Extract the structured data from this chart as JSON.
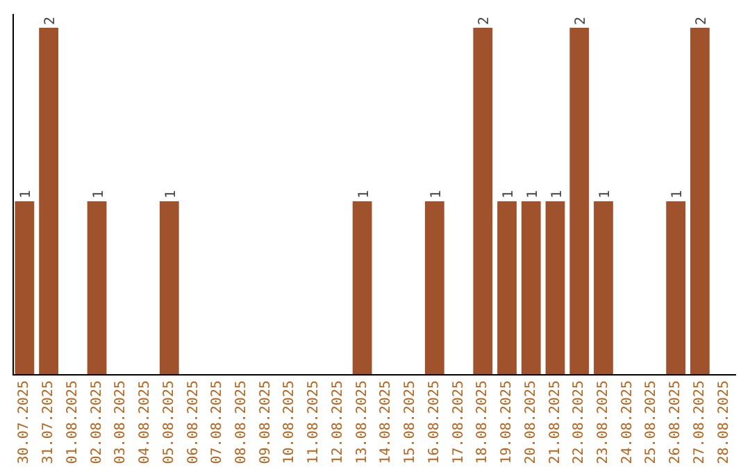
{
  "chart_data": {
    "type": "bar",
    "categories": [
      "30.07.2025",
      "31.07.2025",
      "01.08.2025",
      "02.08.2025",
      "03.08.2025",
      "04.08.2025",
      "05.08.2025",
      "06.08.2025",
      "07.08.2025",
      "08.08.2025",
      "09.08.2025",
      "10.08.2025",
      "11.08.2025",
      "12.08.2025",
      "13.08.2025",
      "14.08.2025",
      "15.08.2025",
      "16.08.2025",
      "17.08.2025",
      "18.08.2025",
      "19.08.2025",
      "20.08.2025",
      "21.08.2025",
      "22.08.2025",
      "23.08.2025",
      "24.08.2025",
      "25.08.2025",
      "26.08.2025",
      "27.08.2025",
      "28.08.2025"
    ],
    "values": [
      1,
      2,
      0,
      1,
      0,
      0,
      1,
      0,
      0,
      0,
      0,
      0,
      0,
      0,
      1,
      0,
      0,
      1,
      0,
      2,
      1,
      1,
      1,
      2,
      1,
      0,
      0,
      1,
      2,
      0
    ],
    "value_labels": [
      "1",
      "2",
      null,
      "1",
      null,
      null,
      "1",
      null,
      null,
      null,
      null,
      null,
      null,
      null,
      "1",
      null,
      null,
      "1",
      null,
      "2",
      "1",
      "1",
      "1",
      "2",
      "1",
      null,
      null,
      "1",
      "2",
      null
    ],
    "color": "#a0522d"
  }
}
